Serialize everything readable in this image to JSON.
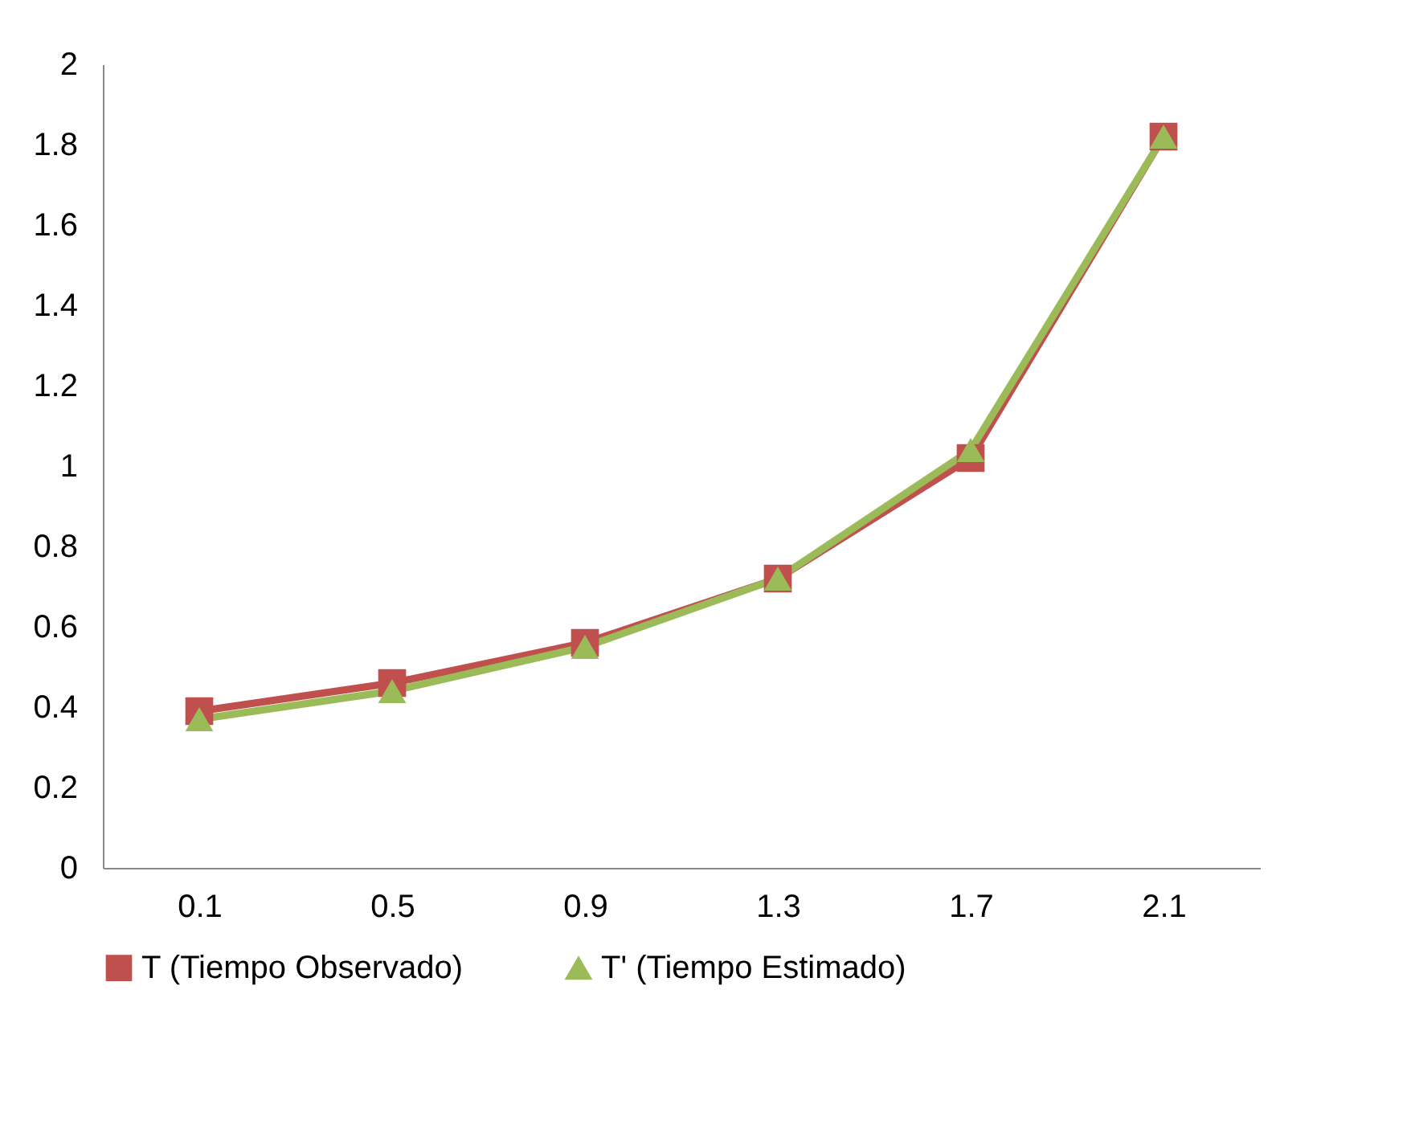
{
  "chart_data": {
    "type": "line",
    "categories": [
      "0.1",
      "0.5",
      "0.9",
      "1.3",
      "1.7",
      "2.1"
    ],
    "series": [
      {
        "name": "T (Tiempo Observado)",
        "color": "#c0504d",
        "marker": "square",
        "values": [
          0.39,
          0.46,
          0.56,
          0.72,
          1.02,
          1.82
        ]
      },
      {
        "name": "T' (Tiempo Estimado)",
        "color": "#9bbb59",
        "marker": "triangle",
        "values": [
          0.37,
          0.44,
          0.55,
          0.72,
          1.04,
          1.82
        ]
      }
    ],
    "ylim": [
      0,
      2
    ],
    "yticks": [
      0,
      0.2,
      0.4,
      0.6,
      0.8,
      1,
      1.2,
      1.4,
      1.6,
      1.8,
      2
    ],
    "grid": false,
    "legend": "bottom",
    "line_style": "solid"
  }
}
